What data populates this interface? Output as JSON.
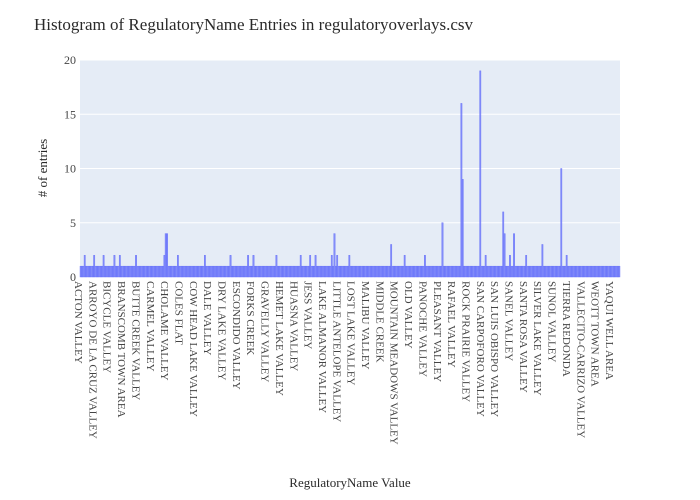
{
  "chart_data": {
    "type": "bar",
    "title": "Histogram of RegulatoryName Entries in regulatoryoverlays.csv",
    "xlabel": "RegulatoryName Value",
    "ylabel": "# of entries",
    "ylim": [
      0,
      20
    ],
    "yticks": [
      "0",
      "5",
      "10",
      "15",
      "20"
    ],
    "grid": true,
    "colors": {
      "bar": "#636efa",
      "plot_bg": "#e5ecf6",
      "grid": "#ffffff"
    },
    "category_count": 400,
    "tick_labels": [
      "ACTON VALLEY",
      "ARROYO DE LA CRUZ VALLEY",
      "BICYCLE VALLEY",
      "BRANSCOMB TOWN AREA",
      "BUTTE CREEK VALLEY",
      "CARMEL VALLEY",
      "CHOLAME VALLEY",
      "COLES FLAT",
      "COW HEAD LAKE VALLEY",
      "DALE VALLEY",
      "DRY LAKE VALLEY",
      "ESCONDIDO VALLEY",
      "FORKS CREEK",
      "GRAVELLY VALLEY",
      "HEMET LAKE VALLEY",
      "HUASNA VALLEY",
      "JESS VALLEY",
      "LAKE ALMANOR VALLEY",
      "LITTLE ANTELOPE VALLEY",
      "LOST LAKE VALLEY",
      "MALIBU VALLEY",
      "MIDDLE CREEK",
      "MOUNTAIN MEADOWS VALLEY",
      "OLD VALLEY",
      "PANOCHE VALLEY",
      "PLEASANT VALLEY",
      "RAFAEL VALLEY",
      "ROCK PRAIRIE VALLEY",
      "SAN CARPOFORO VALLEY",
      "SAN LUIS OBISPO VALLEY",
      "SANEL VALLEY",
      "SANTA ROSA VALLEY",
      "SILVER LAKE VALLEY",
      "SUNOL VALLEY",
      "TIERRA REDONDA",
      "VALLECITO-CARRIZO VALLEY",
      "WEOTT TOWN AREA",
      "YAQUI WELL AREA"
    ],
    "peaks": [
      {
        "index": 3,
        "value": 2
      },
      {
        "index": 10,
        "value": 2
      },
      {
        "index": 17,
        "value": 2
      },
      {
        "index": 25,
        "value": 2
      },
      {
        "index": 29,
        "value": 2
      },
      {
        "index": 41,
        "value": 2
      },
      {
        "index": 62,
        "value": 2
      },
      {
        "index": 63,
        "value": 4
      },
      {
        "index": 64,
        "value": 4
      },
      {
        "index": 72,
        "value": 2
      },
      {
        "index": 92,
        "value": 2
      },
      {
        "index": 111,
        "value": 2
      },
      {
        "index": 124,
        "value": 2
      },
      {
        "index": 128,
        "value": 2
      },
      {
        "index": 145,
        "value": 2
      },
      {
        "index": 163,
        "value": 2
      },
      {
        "index": 170,
        "value": 2
      },
      {
        "index": 174,
        "value": 2
      },
      {
        "index": 186,
        "value": 2
      },
      {
        "index": 188,
        "value": 4
      },
      {
        "index": 190,
        "value": 2
      },
      {
        "index": 199,
        "value": 2
      },
      {
        "index": 230,
        "value": 3
      },
      {
        "index": 240,
        "value": 2
      },
      {
        "index": 255,
        "value": 2
      },
      {
        "index": 268,
        "value": 5
      },
      {
        "index": 282,
        "value": 16
      },
      {
        "index": 283,
        "value": 9
      },
      {
        "index": 296,
        "value": 19
      },
      {
        "index": 300,
        "value": 2
      },
      {
        "index": 313,
        "value": 6
      },
      {
        "index": 314,
        "value": 4
      },
      {
        "index": 318,
        "value": 2
      },
      {
        "index": 321,
        "value": 4
      },
      {
        "index": 330,
        "value": 2
      },
      {
        "index": 342,
        "value": 3
      },
      {
        "index": 356,
        "value": 10
      },
      {
        "index": 360,
        "value": 2
      }
    ],
    "default_value": 1
  }
}
